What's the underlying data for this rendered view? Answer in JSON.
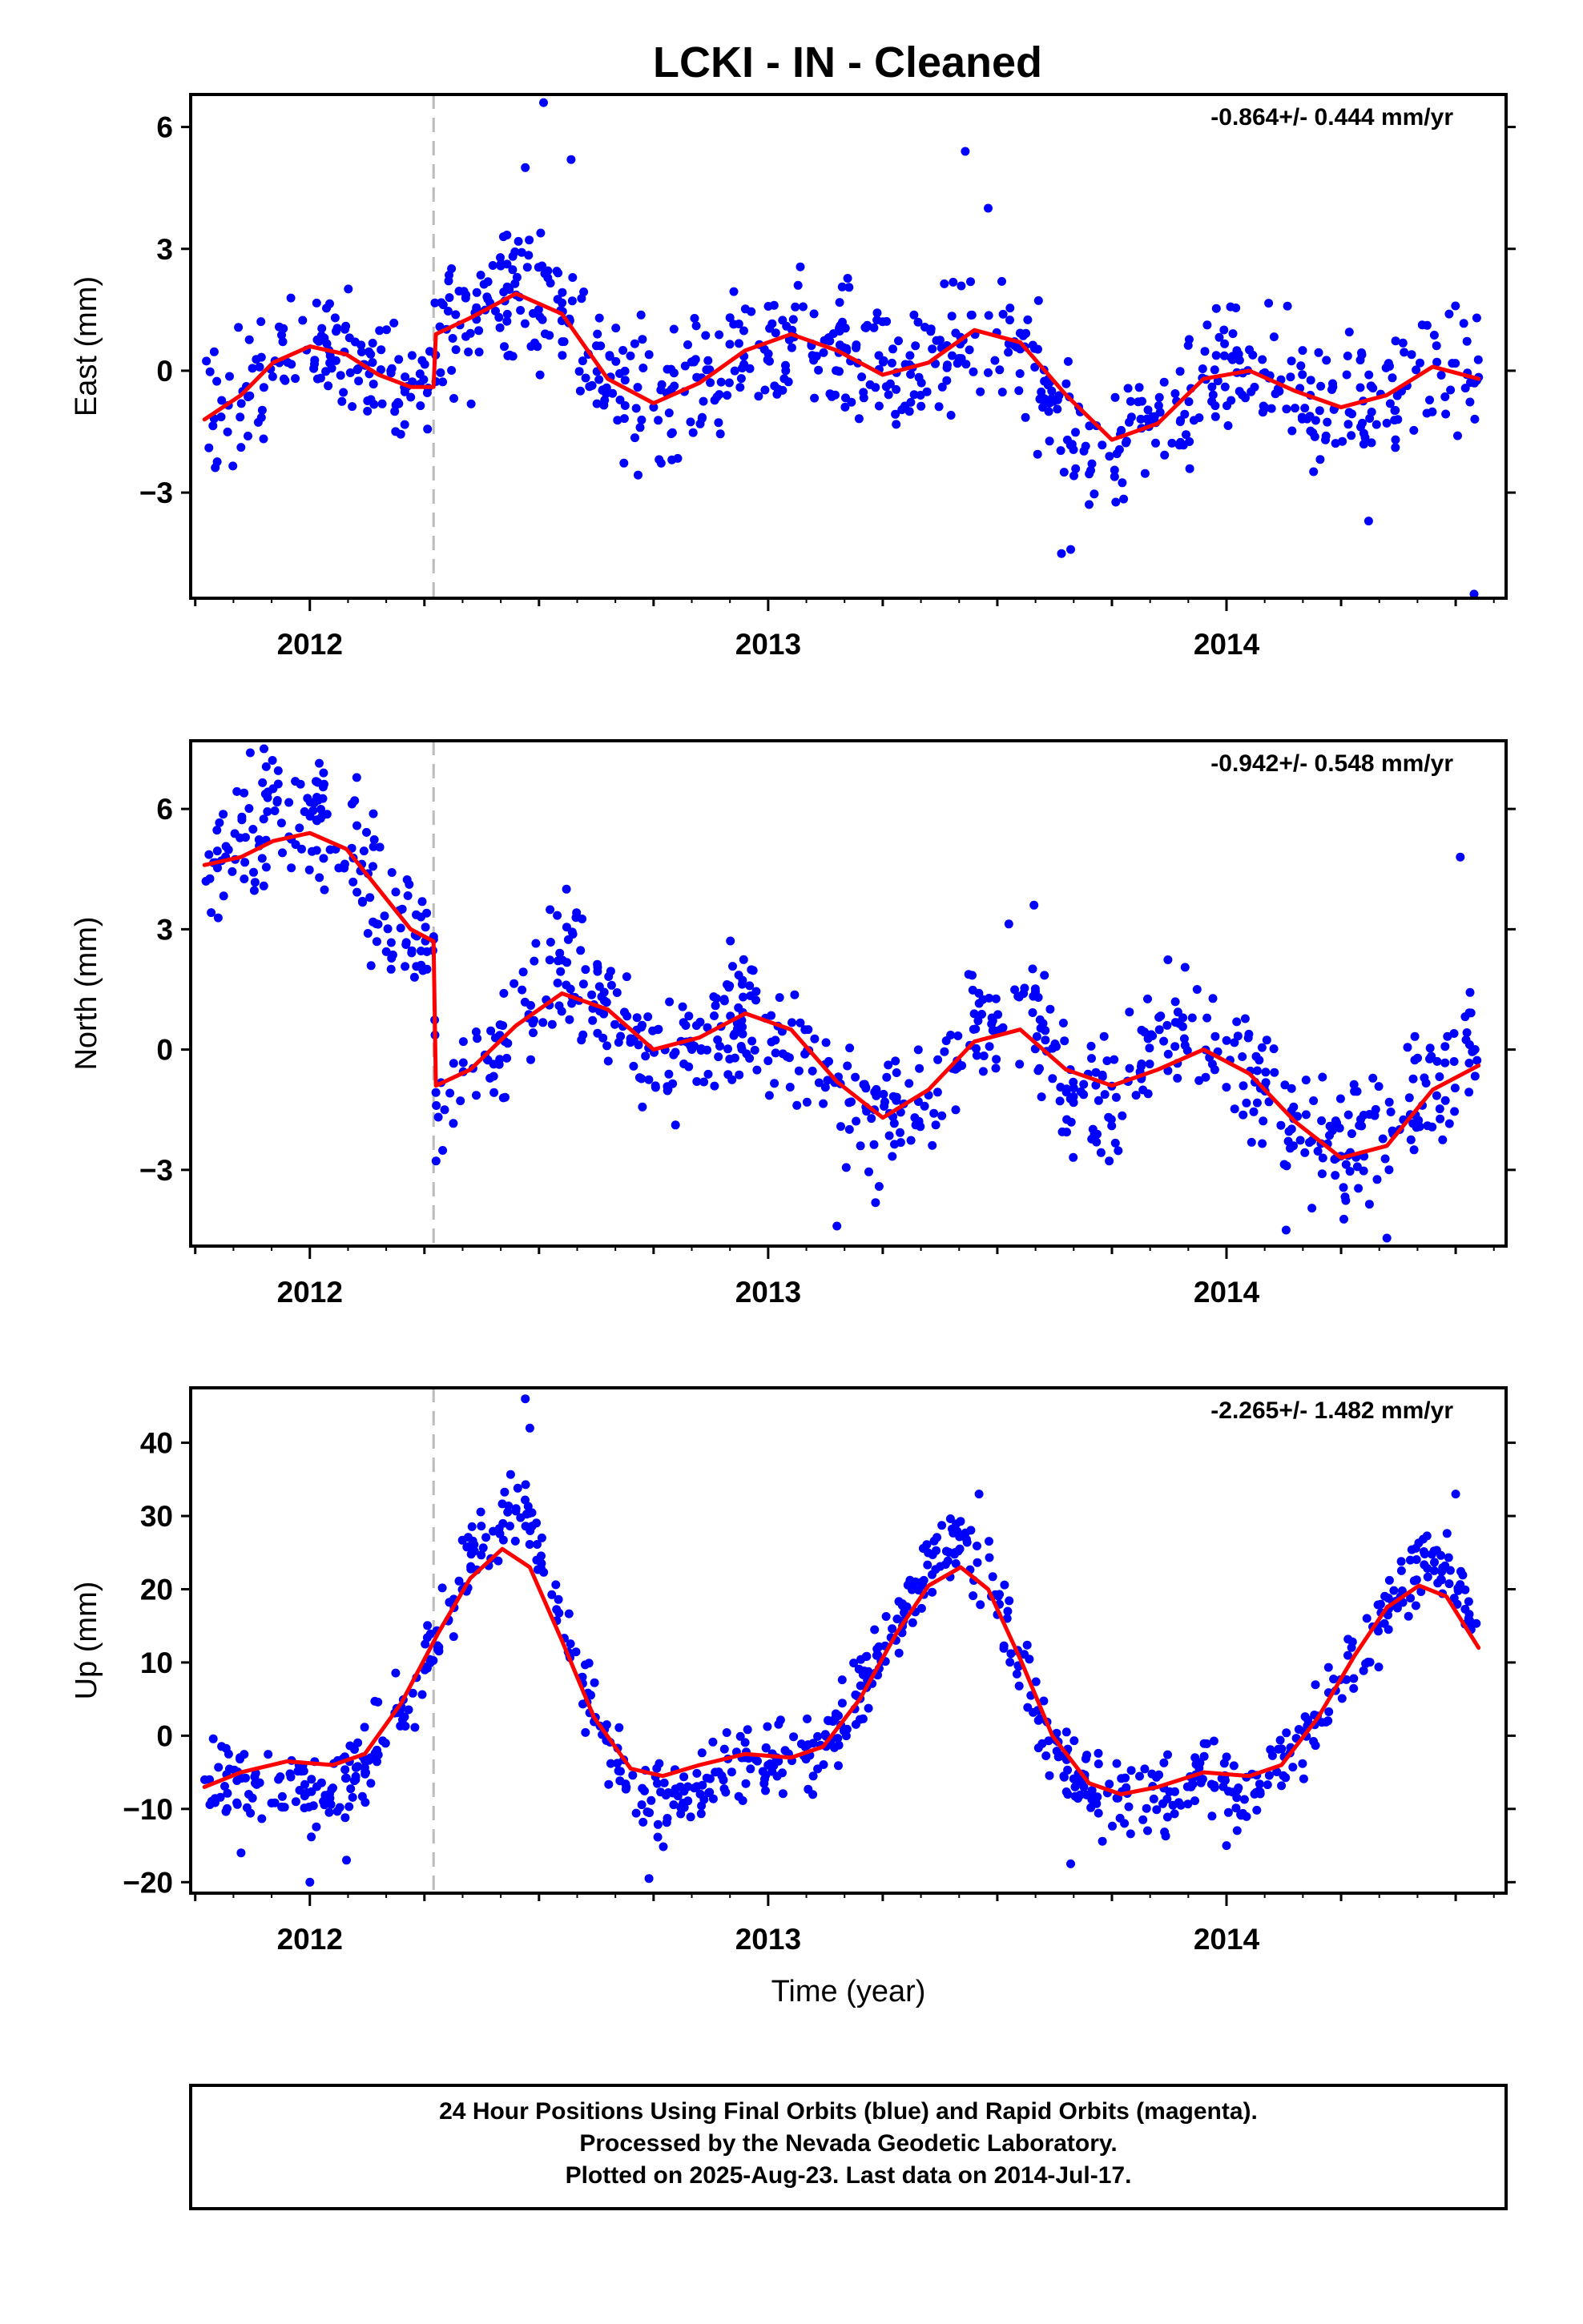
{
  "title": "LCKI  - IN - Cleaned",
  "colors": {
    "final_points": "#0000ff",
    "model_fit": "#ff0000",
    "break_line": "#bbbbbb",
    "frame": "#000000"
  },
  "footer": {
    "line1": "24 Hour Positions Using Final Orbits (blue) and Rapid Orbits (magenta).",
    "line2": "Processed by the Nevada Geodetic Laboratory.",
    "line3": "Plotted on 2025-Aug-23. Last data on 2014-Jul-17."
  },
  "chart_data": [
    {
      "type": "scatter",
      "panel": "east",
      "ylabel": "East (mm)",
      "xlabel": "",
      "rate": "-0.864+/- 0.444 mm/yr",
      "xlim": [
        2011.74,
        2014.61
      ],
      "ylim": [
        -5.6,
        6.8
      ],
      "yticks": [
        -3,
        0,
        3,
        6
      ],
      "xticks": [
        2012,
        2013,
        2014
      ],
      "break_epoch": 2012.27,
      "fit": {
        "x": [
          2011.77,
          2011.85,
          2011.92,
          2012.0,
          2012.08,
          2012.15,
          2012.22,
          2012.27,
          2012.275,
          2012.35,
          2012.45,
          2012.55,
          2012.65,
          2012.75,
          2012.85,
          2012.95,
          2013.05,
          2013.15,
          2013.25,
          2013.35,
          2013.45,
          2013.55,
          2013.65,
          2013.75,
          2013.85,
          2013.95,
          2014.05,
          2014.15,
          2014.25,
          2014.35,
          2014.45,
          2014.55
        ],
        "y": [
          -1.2,
          -0.6,
          0.2,
          0.6,
          0.4,
          -0.1,
          -0.4,
          -0.4,
          0.9,
          1.3,
          1.9,
          1.4,
          -0.2,
          -0.8,
          -0.3,
          0.5,
          0.9,
          0.5,
          -0.1,
          0.2,
          1.0,
          0.7,
          -0.6,
          -1.7,
          -1.3,
          -0.2,
          0.0,
          -0.5,
          -0.9,
          -0.6,
          0.1,
          -0.2
        ]
      },
      "points": {
        "base_x": [
          2011.77,
          2011.85,
          2011.92,
          2012.0,
          2012.08,
          2012.15,
          2012.22,
          2012.27,
          2012.275,
          2012.35,
          2012.45,
          2012.55,
          2012.65,
          2012.75,
          2012.85,
          2012.95,
          2013.05,
          2013.15,
          2013.25,
          2013.35,
          2013.45,
          2013.55,
          2013.65,
          2013.75,
          2013.85,
          2013.95,
          2014.05,
          2014.15,
          2014.25,
          2014.35,
          2014.45,
          2014.55
        ],
        "base_y": [
          -1.2,
          -0.6,
          0.2,
          0.6,
          0.4,
          -0.1,
          -0.4,
          -0.4,
          0.9,
          1.3,
          2.0,
          1.6,
          -0.2,
          -0.8,
          -0.3,
          0.5,
          1.0,
          0.6,
          -0.1,
          0.2,
          1.2,
          0.5,
          -1.3,
          -2.2,
          -1.0,
          -0.2,
          0.0,
          -0.5,
          -0.9,
          -0.6,
          0.2,
          -0.1
        ],
        "count": 820,
        "x_range": [
          2011.77,
          2014.55
        ],
        "scatter_mm": 1.0,
        "outliers": [
          [
            2012.51,
            6.6
          ],
          [
            2013.43,
            5.4
          ],
          [
            2012.57,
            5.2
          ],
          [
            2012.47,
            5.0
          ],
          [
            2014.54,
            -5.5
          ],
          [
            2013.64,
            -4.5
          ],
          [
            2013.66,
            -4.4
          ],
          [
            2014.31,
            -3.7
          ],
          [
            2013.48,
            4.0
          ]
        ]
      }
    },
    {
      "type": "scatter",
      "panel": "north",
      "ylabel": "North (mm)",
      "xlabel": "",
      "rate": "-0.942+/- 0.548 mm/yr",
      "xlim": [
        2011.74,
        2014.61
      ],
      "ylim": [
        -4.9,
        7.7
      ],
      "yticks": [
        -3,
        0,
        3,
        6
      ],
      "xticks": [
        2012,
        2013,
        2014
      ],
      "break_epoch": 2012.27,
      "fit": {
        "x": [
          2011.77,
          2011.85,
          2011.92,
          2012.0,
          2012.08,
          2012.15,
          2012.22,
          2012.27,
          2012.275,
          2012.35,
          2012.45,
          2012.55,
          2012.65,
          2012.75,
          2012.85,
          2012.95,
          2013.05,
          2013.15,
          2013.25,
          2013.35,
          2013.45,
          2013.55,
          2013.65,
          2013.75,
          2013.85,
          2013.95,
          2014.05,
          2014.15,
          2014.25,
          2014.35,
          2014.45,
          2014.55
        ],
        "y": [
          4.6,
          4.8,
          5.2,
          5.4,
          5.0,
          4.0,
          3.0,
          2.7,
          -0.9,
          -0.5,
          0.6,
          1.4,
          1.0,
          0.0,
          0.3,
          0.9,
          0.5,
          -0.8,
          -1.7,
          -1.0,
          0.2,
          0.5,
          -0.5,
          -0.9,
          -0.5,
          0.0,
          -0.6,
          -1.8,
          -2.7,
          -2.4,
          -1.0,
          -0.4
        ]
      },
      "points": {
        "base_x": [
          2011.77,
          2011.85,
          2011.92,
          2012.0,
          2012.08,
          2012.15,
          2012.22,
          2012.27,
          2012.275,
          2012.35,
          2012.45,
          2012.55,
          2012.65,
          2012.75,
          2012.85,
          2012.95,
          2013.05,
          2013.15,
          2013.25,
          2013.35,
          2013.45,
          2013.55,
          2013.65,
          2013.75,
          2013.85,
          2013.95,
          2014.05,
          2014.15,
          2014.25,
          2014.35,
          2014.45,
          2014.55
        ],
        "base_y": [
          4.8,
          5.2,
          5.8,
          5.6,
          5.0,
          4.0,
          3.0,
          2.2,
          -1.5,
          -0.8,
          0.4,
          2.0,
          1.0,
          -0.5,
          0.3,
          0.8,
          0.2,
          -1.0,
          -2.2,
          -1.0,
          0.5,
          1.3,
          -0.8,
          -1.2,
          0.8,
          0.4,
          -0.8,
          -2.0,
          -2.5,
          -2.0,
          -1.0,
          0.2
        ],
        "count": 820,
        "x_range": [
          2011.77,
          2014.55
        ],
        "scatter_mm": 1.0,
        "outliers": [
          [
            2011.87,
            7.4
          ],
          [
            2011.9,
            7.5
          ],
          [
            2012.03,
            6.9
          ],
          [
            2014.51,
            4.8
          ],
          [
            2013.15,
            -4.4
          ],
          [
            2014.35,
            -4.7
          ],
          [
            2014.13,
            -4.5
          ],
          [
            2012.56,
            4.0
          ],
          [
            2013.58,
            3.6
          ]
        ]
      }
    },
    {
      "type": "scatter",
      "panel": "up",
      "ylabel": "Up (mm)",
      "xlabel": "Time (year)",
      "rate": "-2.265+/- 1.482 mm/yr",
      "xlim": [
        2011.74,
        2014.61
      ],
      "ylim": [
        -21.5,
        47.5
      ],
      "yticks": [
        -20,
        -10,
        0,
        10,
        20,
        30,
        40
      ],
      "xticks": [
        2012,
        2013,
        2014
      ],
      "break_epoch": 2012.27,
      "fit": {
        "x": [
          2011.77,
          2011.85,
          2011.95,
          2012.05,
          2012.12,
          2012.2,
          2012.28,
          2012.35,
          2012.42,
          2012.48,
          2012.55,
          2012.62,
          2012.7,
          2012.77,
          2012.85,
          2012.95,
          2013.05,
          2013.12,
          2013.2,
          2013.28,
          2013.35,
          2013.42,
          2013.48,
          2013.55,
          2013.62,
          2013.7,
          2013.77,
          2013.85,
          2013.95,
          2014.05,
          2014.12,
          2014.2,
          2014.28,
          2014.35,
          2014.42,
          2014.48,
          2014.55
        ],
        "y": [
          -7.0,
          -5.0,
          -3.5,
          -4.0,
          -2.5,
          4.5,
          14.0,
          21.5,
          25.5,
          23.0,
          13.0,
          2.5,
          -4.5,
          -5.5,
          -4.0,
          -2.5,
          -3.0,
          -1.5,
          5.0,
          14.0,
          20.5,
          23.0,
          20.0,
          10.5,
          0.0,
          -6.5,
          -8.0,
          -7.0,
          -5.0,
          -5.5,
          -4.0,
          2.5,
          11.0,
          17.5,
          20.5,
          19.0,
          12.0
        ]
      },
      "points": {
        "base_x": [
          2011.77,
          2011.85,
          2011.95,
          2012.05,
          2012.12,
          2012.2,
          2012.28,
          2012.35,
          2012.42,
          2012.48,
          2012.55,
          2012.62,
          2012.7,
          2012.77,
          2012.85,
          2012.95,
          2013.05,
          2013.12,
          2013.2,
          2013.28,
          2013.35,
          2013.42,
          2013.48,
          2013.55,
          2013.62,
          2013.7,
          2013.77,
          2013.85,
          2013.95,
          2014.05,
          2014.12,
          2014.2,
          2014.28,
          2014.35,
          2014.42,
          2014.48,
          2014.55
        ],
        "base_y": [
          -6.0,
          -6.5,
          -7.5,
          -9.0,
          -3.0,
          5.0,
          13.0,
          24.0,
          30.0,
          30.0,
          15.0,
          2.0,
          -7.0,
          -9.0,
          -6.5,
          -3.0,
          -3.0,
          -3.0,
          6.0,
          16.0,
          23.0,
          27.0,
          21.0,
          10.0,
          -2.0,
          -7.5,
          -8.5,
          -8.0,
          -6.0,
          -9.0,
          -4.0,
          3.0,
          11.0,
          17.0,
          24.0,
          23.0,
          14.0
        ],
        "count": 820,
        "x_range": [
          2011.77,
          2014.55
        ],
        "scatter_mm": 3.2,
        "outliers": [
          [
            2012.47,
            46.0
          ],
          [
            2012.48,
            42.0
          ],
          [
            2013.46,
            33.0
          ],
          [
            2014.5,
            33.0
          ],
          [
            2012.0,
            -20.0
          ],
          [
            2012.74,
            -19.5
          ],
          [
            2013.66,
            -17.5
          ],
          [
            2011.85,
            -16.0
          ],
          [
            2012.08,
            -17.0
          ],
          [
            2014.0,
            -15.0
          ]
        ]
      }
    }
  ]
}
